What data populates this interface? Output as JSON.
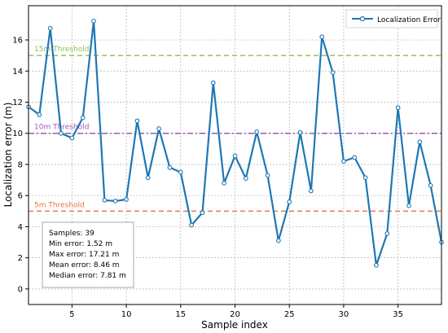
{
  "chart_data": {
    "type": "line",
    "xlabel": "Sample index",
    "ylabel": "Localization error (m)",
    "xlim": [
      1,
      39
    ],
    "ylim": [
      -1,
      18.2
    ],
    "x_ticks": [
      5,
      10,
      15,
      20,
      25,
      30,
      35
    ],
    "y_ticks": [
      0,
      2,
      4,
      6,
      8,
      10,
      12,
      14,
      16
    ],
    "grid": true,
    "legend_position": "top-right",
    "series": [
      {
        "name": "Localization Error",
        "color": "#1f77b4",
        "marker": "circle",
        "x": [
          1,
          2,
          3,
          4,
          5,
          6,
          7,
          8,
          9,
          10,
          11,
          12,
          13,
          14,
          15,
          16,
          17,
          18,
          19,
          20,
          21,
          22,
          23,
          24,
          25,
          26,
          27,
          28,
          29,
          30,
          31,
          32,
          33,
          34,
          35,
          36,
          37,
          38,
          39
        ],
        "values": [
          11.7,
          11.2,
          16.75,
          10.0,
          9.7,
          11.0,
          17.21,
          5.7,
          5.65,
          5.75,
          10.8,
          7.15,
          10.3,
          7.8,
          7.5,
          4.1,
          4.9,
          13.25,
          6.8,
          8.55,
          7.1,
          10.1,
          7.3,
          3.1,
          5.6,
          10.05,
          6.3,
          16.2,
          13.9,
          8.2,
          8.45,
          7.15,
          1.52,
          3.55,
          11.65,
          5.35,
          9.45,
          6.65,
          3.0
        ]
      }
    ],
    "thresholds": [
      {
        "label": "15m Threshold",
        "value": 15,
        "color": "#8fbf4d",
        "style": "dashed"
      },
      {
        "label": "10m Threshold",
        "value": 10,
        "color": "#9b59b6",
        "style": "dashdot"
      },
      {
        "label": "5m Threshold",
        "value": 5,
        "color": "#e8743b",
        "style": "dashed"
      }
    ],
    "stats_box": [
      "Samples: 39",
      "Min error: 1.52 m",
      "Max error: 17.21 m",
      "Mean error: 8.46 m",
      "Median error: 7.81 m"
    ]
  }
}
